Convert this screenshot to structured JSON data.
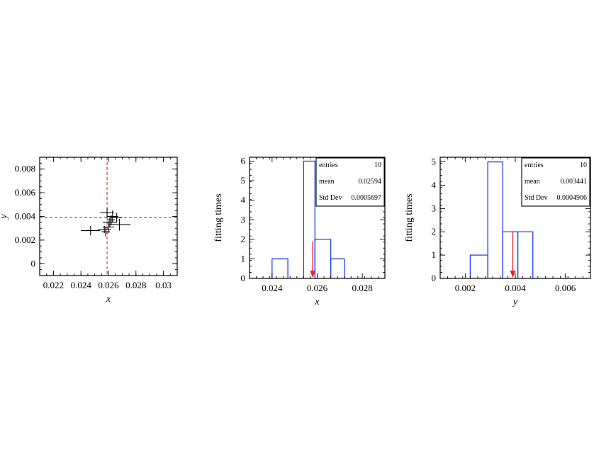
{
  "chart_data": [
    {
      "type": "scatter",
      "title": "",
      "xlabel": "x",
      "ylabel": "y",
      "xlim": [
        0.021,
        0.031
      ],
      "ylim": [
        -0.001,
        0.009
      ],
      "xticks": [
        "0.022",
        "0.024",
        "0.026",
        "0.028",
        "0.03"
      ],
      "yticks": [
        "0",
        "0.002",
        "0.004",
        "0.006",
        "0.008"
      ],
      "reference_lines": {
        "x": 0.0259,
        "y": 0.0039,
        "color": "#e8202e",
        "style": "dashed"
      },
      "points": [
        {
          "x": 0.0247,
          "y": 0.0028,
          "xerr": 0.0007,
          "yerr": 0.0004
        },
        {
          "x": 0.0259,
          "y": 0.0043,
          "xerr": 0.0005,
          "yerr": 0.0004
        },
        {
          "x": 0.026,
          "y": 0.0031,
          "xerr": 0.0004,
          "yerr": 0.0005
        },
        {
          "x": 0.0261,
          "y": 0.0035,
          "xerr": 0.0005,
          "yerr": 0.0004
        },
        {
          "x": 0.0263,
          "y": 0.004,
          "xerr": 0.0004,
          "yerr": 0.0005
        },
        {
          "x": 0.0266,
          "y": 0.0039,
          "xerr": 0.0004,
          "yerr": 0.0004
        },
        {
          "x": 0.0268,
          "y": 0.0033,
          "xerr": 0.0008,
          "yerr": 0.0005
        },
        {
          "x": 0.0257,
          "y": 0.0029,
          "xerr": 0.0005,
          "yerr": 0.0003
        },
        {
          "x": 0.0262,
          "y": 0.0037,
          "xerr": 0.0003,
          "yerr": 0.0004
        },
        {
          "x": 0.0258,
          "y": 0.0027,
          "xerr": 0.0003,
          "yerr": 0.0004
        }
      ]
    },
    {
      "type": "histogram",
      "title": "",
      "xlabel": "x",
      "ylabel": "fitting times",
      "xlim": [
        0.023,
        0.029
      ],
      "ylim": [
        0,
        6.2
      ],
      "xticks": [
        "0.024",
        "0.026",
        "0.028"
      ],
      "yticks": [
        "0",
        "1",
        "2",
        "3",
        "4",
        "5",
        "6"
      ],
      "bin_edges": [
        0.024,
        0.0247,
        0.0254,
        0.0259,
        0.0266,
        0.0272
      ],
      "counts": [
        1,
        0,
        6,
        2,
        1
      ],
      "marker_value": 0.0258,
      "marker_top": 1.9,
      "stats": [
        {
          "label": "entries",
          "value": "10"
        },
        {
          "label": "mean",
          "value": "0.02594"
        },
        {
          "label": "Std Dev",
          "value": "0.0005697"
        }
      ]
    },
    {
      "type": "histogram",
      "title": "",
      "xlabel": "y",
      "ylabel": "fitting times",
      "xlim": [
        0.001,
        0.007
      ],
      "ylim": [
        0,
        5.2
      ],
      "xticks": [
        "0.002",
        "0.004",
        "0.006"
      ],
      "yticks": [
        "0",
        "1",
        "2",
        "3",
        "4",
        "5"
      ],
      "bin_edges": [
        0.0022,
        0.0029,
        0.0035,
        0.0041,
        0.0047
      ],
      "counts": [
        1,
        5,
        2,
        2
      ],
      "marker_value": 0.0039,
      "marker_top": 2.0,
      "stats": [
        {
          "label": "entries",
          "value": "10"
        },
        {
          "label": "mean",
          "value": "0.003441"
        },
        {
          "label": "Std Dev",
          "value": "0.0004906"
        }
      ]
    }
  ]
}
